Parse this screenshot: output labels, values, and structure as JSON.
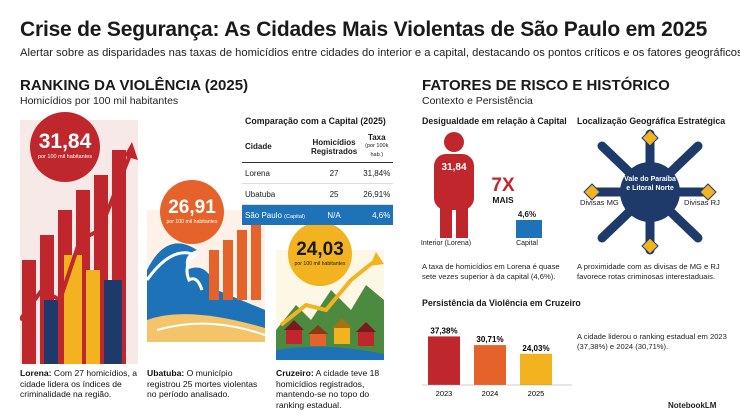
{
  "header": {
    "title": "Crise de Segurança: As Cidades Mais Violentas de São Paulo em 2025",
    "subtitle": "Alertar sobre as disparidades nas taxas de homicídios entre cidades do interior e a capital, destacando os pontos críticos e os fatores geográficos."
  },
  "ranking": {
    "title": "RANKING DA VIOLÊNCIA (2025)",
    "subtitle": "Homicídios por 100 mil habitantes",
    "cities": [
      {
        "value": "31,84",
        "unit": "por 100 mil habitantes",
        "name": "Lorena:",
        "desc": "Com 27 homicídios, a cidade lidera os índices de criminalidade na região.",
        "color": "#c0272d"
      },
      {
        "value": "26,91",
        "unit": "por 100 mil habitantes",
        "name": "Ubatuba:",
        "desc": "O município registrou 25 mortes violentas no período analisado.",
        "color": "#e5622a"
      },
      {
        "value": "24,03",
        "unit": "por 100 mil habitantes",
        "name": "Cruzeiro:",
        "desc": "A cidade teve 18 homicídios registrados, mantendo-se no topo do ranking estadual.",
        "color": "#f3b320"
      }
    ]
  },
  "comparison": {
    "title": "Comparação com a Capital (2025)",
    "headers": {
      "city": "Cidade",
      "homicides": "Homicídios Registrados",
      "rate": "Taxa",
      "rate_unit": "(por 100k hab.)"
    },
    "rows": [
      {
        "city": "Lorena",
        "homicides": "27",
        "rate": "31,84%"
      },
      {
        "city": "Ubatuba",
        "homicides": "25",
        "rate": "26,91%"
      }
    ],
    "capital": {
      "city": "São Paulo",
      "tag": "(Capital)",
      "homicides": "N/A",
      "rate": "4,6%"
    }
  },
  "factors": {
    "title": "FATORES DE RISCO E HISTÓRICO",
    "subtitle": "Contexto e Persistência",
    "inequality": {
      "title": "Desigualdade em relação à Capital",
      "interior_value": "31,84",
      "interior_label": "Interior (Lorena)",
      "capital_value": "4,6%",
      "capital_label": "Capital",
      "ratio": "7X",
      "ratio_word": "MAIS",
      "note": "A taxa de homicídios em Lorena é quase sete vezes superior à da capital (4,6%)."
    },
    "location": {
      "title": "Localização Geográfica Estratégica",
      "center": "Vale do Paraíba e Litoral Norte",
      "left": "Divisas MG",
      "right": "Divisas RJ",
      "note": "A proximidade com as divisas de MG e RJ favorece rotas criminosas interestaduais."
    },
    "persistence": {
      "title": "Persistência da Violência em Cruzeiro",
      "note": "A cidade liderou o ranking estadual em 2023 (37,38%) e 2024 (30,71%)."
    }
  },
  "chart_data": {
    "type": "bar",
    "categories": [
      "2023",
      "2024",
      "2025"
    ],
    "values": [
      37.38,
      30.71,
      24.03
    ],
    "labels": [
      "37,38%",
      "30,71%",
      "24,03%"
    ],
    "colors": [
      "#c0272d",
      "#e5622a",
      "#f3b320"
    ],
    "title": "Persistência da Violência em Cruzeiro"
  },
  "branding": {
    "logo": "NotebookLM"
  }
}
